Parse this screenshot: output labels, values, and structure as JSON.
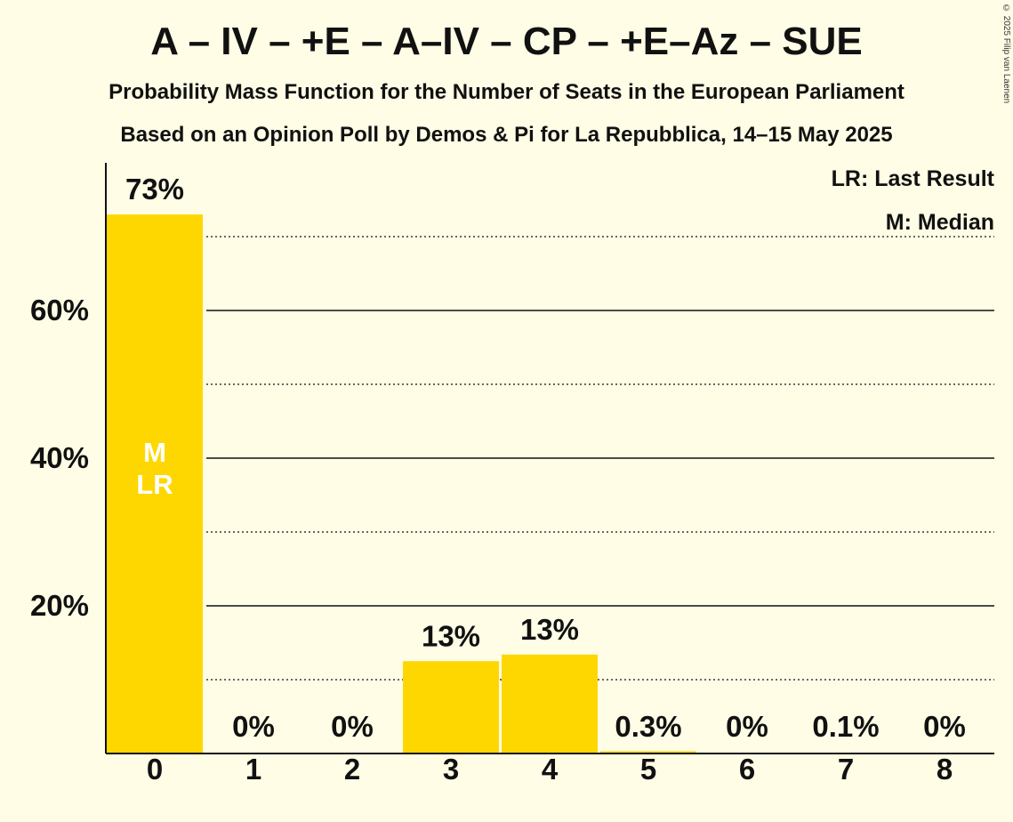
{
  "header": {
    "title": "A – IV – +E – A–IV – CP – +E–Az – SUE",
    "subtitle": "Probability Mass Function for the Number of Seats in the European Parliament",
    "subtitle2": "Based on an Opinion Poll by Demos & Pi for La Repubblica, 14–15 May 2025",
    "copyright": "© 2025 Filip van Laenen"
  },
  "legend": {
    "lr": "LR: Last Result",
    "m": "M: Median"
  },
  "colors": {
    "bar": "#FFD700",
    "background": "#FFFDE6",
    "text": "#111111"
  },
  "chart_data": {
    "type": "bar",
    "categories": [
      "0",
      "1",
      "2",
      "3",
      "4",
      "5",
      "6",
      "7",
      "8"
    ],
    "values": [
      73,
      0,
      0,
      12.5,
      13.4,
      0.3,
      0,
      0.1,
      0
    ],
    "data_labels": [
      "73%",
      "0%",
      "0%",
      "13%",
      "13%",
      "0.3%",
      "0%",
      "0.1%",
      "0%"
    ],
    "ytick_labels": [
      "20%",
      "40%",
      "60%"
    ],
    "ytick_values": [
      20,
      40,
      60
    ],
    "minor_gridlines": [
      10,
      30,
      50,
      70
    ],
    "ylim": [
      0,
      80
    ],
    "xlabel": "",
    "ylabel": "",
    "bar_annotations": [
      {
        "category": "0",
        "lines": [
          "M",
          "LR"
        ]
      }
    ],
    "legend_position": "top-right"
  }
}
